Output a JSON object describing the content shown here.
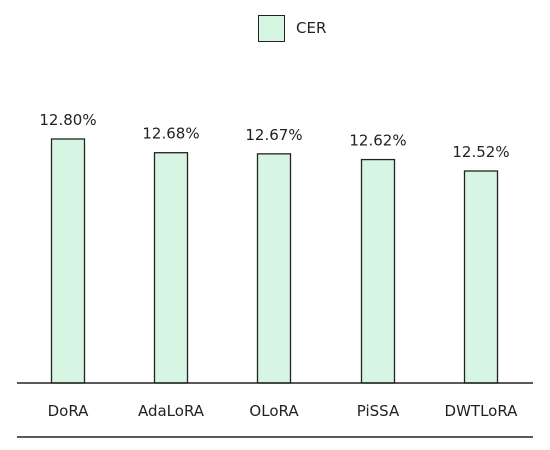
{
  "chart_data": {
    "type": "bar",
    "categories": [
      "DoRA",
      "AdaLoRA",
      "OLoRA",
      "PiSSA",
      "DWTLoRA"
    ],
    "series": [
      {
        "name": "CER",
        "values": [
          12.8,
          12.68,
          12.67,
          12.62,
          12.52
        ],
        "color": "#d6f5e3"
      }
    ],
    "data_labels": [
      "12.80%",
      "12.68%",
      "12.67%",
      "12.62%",
      "12.52%"
    ],
    "unit": "%",
    "legend": {
      "position": "top-center"
    },
    "grid": false,
    "yaxis_visible": false
  }
}
